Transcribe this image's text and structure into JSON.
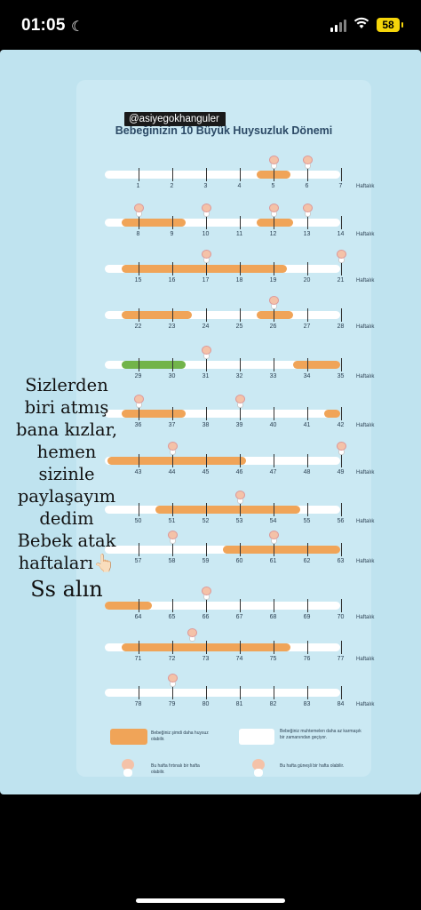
{
  "status_bar": {
    "time": "01:05",
    "battery": "58"
  },
  "poster": {
    "title": "Bebeğinizin 10 Büyük Huysuzluk Dönemi",
    "unit_label": "Haftalık",
    "colors": {
      "fussy": "#f0a458",
      "calm": "#ffffff",
      "green": "#72b44a"
    },
    "legend": {
      "orange_text": "Bebeğiniz şimdi daha huysuz olabilir.",
      "white_text": "Bebeğiniz muhtemelen daha az karmaşık bir zamanından geçiyor.",
      "baby1_text": "Bu hafta fırtınalı bir hafta olabilir.",
      "baby2_text": "Bu hafta güneşli bir hafta olabilir."
    }
  },
  "story_tag": "@asiyegokhanguler",
  "overlay_lines": [
    "Sizlerden",
    "biri atmış",
    "bana kızlar,",
    "hemen",
    "sizinle",
    "paylaşayım",
    "dedim",
    "Bebek atak",
    "haftaları👆🏻"
  ],
  "overlay_last": "Ss alın",
  "timelines": [
    {
      "weeks": [
        "1",
        "2",
        "3",
        "4",
        "5",
        "6",
        "7"
      ],
      "segments": [
        {
          "from": 4.5,
          "to": 5.5,
          "color": "fussy"
        }
      ],
      "babies": [
        5,
        6
      ]
    },
    {
      "weeks": [
        "8",
        "9",
        "10",
        "11",
        "12",
        "13",
        "14"
      ],
      "segments": [
        {
          "from": 7.5,
          "to": 9.4,
          "color": "fussy"
        },
        {
          "from": 11.5,
          "to": 12.6,
          "color": "fussy"
        }
      ],
      "babies": [
        8,
        10,
        12,
        13
      ]
    },
    {
      "weeks": [
        "15",
        "16",
        "17",
        "18",
        "19",
        "20",
        "21"
      ],
      "segments": [
        {
          "from": 14.5,
          "to": 19.4,
          "color": "fussy"
        }
      ],
      "babies": [
        17,
        21
      ]
    },
    {
      "weeks": [
        "22",
        "23",
        "24",
        "25",
        "26",
        "27",
        "28"
      ],
      "segments": [
        {
          "from": 21.5,
          "to": 23.6,
          "color": "fussy"
        },
        {
          "from": 25.5,
          "to": 26.6,
          "color": "fussy"
        }
      ],
      "babies": [
        26
      ]
    },
    {
      "weeks": [
        "29",
        "30",
        "31",
        "32",
        "33",
        "34",
        "35"
      ],
      "segments": [
        {
          "from": 28.5,
          "to": 30.4,
          "color": "green"
        },
        {
          "from": 33.6,
          "to": 35.0,
          "color": "fussy"
        }
      ],
      "babies": [
        31
      ]
    },
    {
      "weeks": [
        "36",
        "37",
        "38",
        "39",
        "40",
        "41",
        "42"
      ],
      "segments": [
        {
          "from": 35.5,
          "to": 37.4,
          "color": "fussy"
        },
        {
          "from": 41.5,
          "to": 42.0,
          "color": "fussy"
        }
      ],
      "babies": [
        36,
        39
      ]
    },
    {
      "weeks": [
        "43",
        "44",
        "45",
        "46",
        "47",
        "48",
        "49"
      ],
      "segments": [
        {
          "from": 42.1,
          "to": 46.2,
          "color": "fussy"
        }
      ],
      "babies": [
        44,
        49
      ]
    },
    {
      "weeks": [
        "50",
        "51",
        "52",
        "53",
        "54",
        "55",
        "56"
      ],
      "segments": [
        {
          "from": 50.5,
          "to": 54.8,
          "color": "fussy"
        }
      ],
      "babies": [
        53
      ]
    },
    {
      "weeks": [
        "57",
        "58",
        "59",
        "60",
        "61",
        "62",
        "63"
      ],
      "segments": [
        {
          "from": 59.5,
          "to": 63.0,
          "color": "fussy"
        }
      ],
      "babies": [
        58,
        61
      ]
    },
    {
      "weeks": [
        "64",
        "65",
        "66",
        "67",
        "68",
        "69",
        "70"
      ],
      "segments": [
        {
          "from": 63.0,
          "to": 64.4,
          "color": "fussy"
        }
      ],
      "babies": [
        66
      ]
    },
    {
      "weeks": [
        "71",
        "72",
        "73",
        "74",
        "75",
        "76",
        "77"
      ],
      "segments": [
        {
          "from": 70.5,
          "to": 75.5,
          "color": "fussy"
        }
      ],
      "babies": [
        72.6
      ]
    },
    {
      "weeks": [
        "78",
        "79",
        "80",
        "81",
        "82",
        "83",
        "84"
      ],
      "segments": [],
      "babies": [
        79
      ]
    }
  ]
}
